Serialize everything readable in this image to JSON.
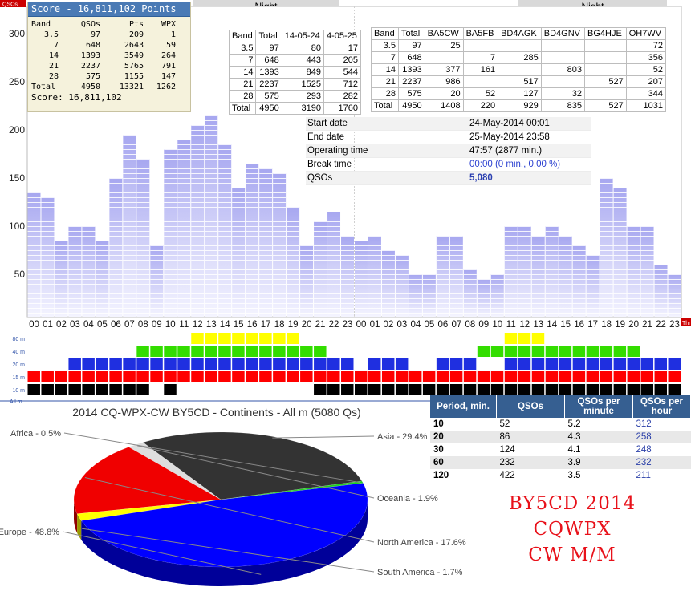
{
  "chart_data": [
    {
      "type": "bar",
      "title": "",
      "ylabel": "QSOs",
      "ylim": [
        0,
        310
      ],
      "y_ticks": [
        50,
        100,
        150,
        200,
        250,
        300
      ],
      "categories": [
        "00",
        "01",
        "02",
        "03",
        "04",
        "05",
        "06",
        "07",
        "08",
        "09",
        "10",
        "11",
        "12",
        "13",
        "14",
        "15",
        "16",
        "17",
        "18",
        "19",
        "20",
        "21",
        "22",
        "23",
        "00",
        "01",
        "02",
        "03",
        "04",
        "05",
        "06",
        "07",
        "08",
        "09",
        "10",
        "11",
        "12",
        "13",
        "14",
        "15",
        "16",
        "17",
        "18",
        "19",
        "20",
        "21",
        "22",
        "23"
      ],
      "values": [
        135,
        130,
        85,
        100,
        100,
        85,
        150,
        195,
        170,
        80,
        180,
        190,
        205,
        215,
        185,
        140,
        165,
        160,
        155,
        120,
        80,
        105,
        115,
        90,
        85,
        90,
        75,
        70,
        50,
        50,
        90,
        90,
        55,
        45,
        50,
        100,
        100,
        90,
        100,
        90,
        80,
        70,
        150,
        140,
        100,
        100,
        60,
        50
      ],
      "bar_color": "#a7a7f0",
      "night_labels": [
        "Night",
        "Night"
      ],
      "right_tag": "Thr"
    },
    {
      "type": "heatmap",
      "rows": [
        "80 m",
        "40 m",
        "20 m",
        "15 m",
        "10 m"
      ],
      "colors": [
        "#ffff00",
        "#33dd00",
        "#1f2fe0",
        "#ff0000",
        "#000000"
      ],
      "active": [
        [
          0,
          0,
          0,
          0,
          0,
          0,
          0,
          0,
          0,
          0,
          0,
          0,
          1,
          1,
          1,
          1,
          1,
          1,
          1,
          1,
          0,
          0,
          0,
          0,
          0,
          0,
          0,
          0,
          0,
          0,
          0,
          0,
          0,
          0,
          0,
          1,
          1,
          1,
          0,
          0,
          0,
          0,
          0,
          0,
          0,
          0,
          0,
          0
        ],
        [
          0,
          0,
          0,
          0,
          0,
          0,
          0,
          0,
          1,
          1,
          1,
          1,
          1,
          1,
          1,
          1,
          1,
          1,
          1,
          1,
          1,
          1,
          0,
          0,
          0,
          0,
          0,
          0,
          0,
          0,
          0,
          0,
          0,
          1,
          1,
          1,
          1,
          1,
          1,
          1,
          1,
          1,
          1,
          1,
          1,
          0,
          0,
          0
        ],
        [
          0,
          0,
          0,
          1,
          1,
          1,
          1,
          1,
          1,
          1,
          1,
          1,
          1,
          1,
          1,
          1,
          1,
          1,
          1,
          1,
          1,
          1,
          1,
          1,
          0,
          1,
          1,
          1,
          0,
          0,
          1,
          1,
          1,
          0,
          0,
          1,
          1,
          1,
          1,
          1,
          1,
          1,
          1,
          1,
          1,
          1,
          1,
          1
        ],
        [
          1,
          1,
          1,
          1,
          1,
          1,
          1,
          1,
          1,
          1,
          1,
          1,
          1,
          1,
          1,
          1,
          1,
          1,
          1,
          1,
          1,
          1,
          1,
          1,
          1,
          1,
          1,
          1,
          1,
          1,
          1,
          1,
          1,
          1,
          1,
          1,
          1,
          1,
          1,
          1,
          1,
          1,
          1,
          1,
          1,
          1,
          1,
          1
        ],
        [
          1,
          1,
          1,
          1,
          1,
          1,
          1,
          1,
          1,
          0,
          1,
          0,
          0,
          0,
          0,
          0,
          0,
          0,
          0,
          0,
          0,
          1,
          1,
          1,
          1,
          1,
          1,
          1,
          1,
          1,
          1,
          1,
          1,
          1,
          1,
          1,
          1,
          1,
          1,
          1,
          1,
          1,
          1,
          1,
          1,
          1,
          1,
          1
        ]
      ],
      "all_label": "All m"
    },
    {
      "type": "pie",
      "title": "2014 CQ-WPX-CW BY5CD - Continents - All m (5080 Qs)",
      "slices": [
        {
          "name": "Asia",
          "label": "Asia - 29.4%",
          "value": 29.4,
          "color": "#333333"
        },
        {
          "name": "Oceania",
          "label": "Oceania - 1.9%",
          "value": 1.9,
          "color": "#dedede"
        },
        {
          "name": "North America",
          "label": "North America - 17.6%",
          "value": 17.6,
          "color": "#f00000"
        },
        {
          "name": "South America",
          "label": "South America - 1.7%",
          "value": 1.7,
          "color": "#ffff00"
        },
        {
          "name": "Europe",
          "label": "Europe - 48.8%",
          "value": 48.8,
          "color": "#0000ff"
        },
        {
          "name": "Africa",
          "label": "Africa - 0.5%",
          "value": 0.5,
          "color": "#22cc22"
        }
      ]
    },
    {
      "type": "table",
      "columns": [
        "Band",
        "Total",
        "14-05-24",
        "4-05-25"
      ],
      "rows": [
        [
          "3.5",
          "97",
          "80",
          "17"
        ],
        [
          "7",
          "648",
          "443",
          "205"
        ],
        [
          "14",
          "1393",
          "849",
          "544"
        ],
        [
          "21",
          "2237",
          "1525",
          "712"
        ],
        [
          "28",
          "575",
          "293",
          "282"
        ],
        [
          "Total",
          "4950",
          "3190",
          "1760"
        ]
      ]
    },
    {
      "type": "table",
      "columns": [
        "Band",
        "Total",
        "BA5CW",
        "BA5FB",
        "BD4AGK",
        "BD4GNV",
        "BG4HJE",
        "OH7WV"
      ],
      "rows": [
        [
          "3.5",
          "97",
          "25",
          "",
          "",
          "",
          "",
          "72"
        ],
        [
          "7",
          "648",
          "",
          "7",
          "285",
          "",
          "",
          "356"
        ],
        [
          "14",
          "1393",
          "377",
          "161",
          "",
          "803",
          "",
          "52"
        ],
        [
          "21",
          "2237",
          "986",
          "",
          "517",
          "",
          "527",
          "207"
        ],
        [
          "28",
          "575",
          "20",
          "52",
          "127",
          "32",
          "",
          "344"
        ],
        [
          "Total",
          "4950",
          "1408",
          "220",
          "929",
          "835",
          "527",
          "1031"
        ]
      ]
    },
    {
      "type": "table",
      "columns": [
        "Period, min.",
        "QSOs",
        "QSOs per minute",
        "QSOs per hour"
      ],
      "rows": [
        [
          "10",
          "52",
          "5.2",
          "312"
        ],
        [
          "20",
          "86",
          "4.3",
          "258"
        ],
        [
          "30",
          "124",
          "4.1",
          "248"
        ],
        [
          "60",
          "232",
          "3.9",
          "232"
        ],
        [
          "120",
          "422",
          "3.5",
          "211"
        ]
      ]
    }
  ],
  "score": {
    "title": "Score - 16,811,102 Points",
    "columns": [
      "Band",
      "QSOs",
      "Pts",
      "WPX"
    ],
    "rows": [
      [
        "3.5",
        "97",
        "209",
        "1"
      ],
      [
        "7",
        "648",
        "2643",
        "59"
      ],
      [
        "14",
        "1393",
        "3549",
        "264"
      ],
      [
        "21",
        "2237",
        "5765",
        "791"
      ],
      [
        "28",
        "575",
        "1155",
        "147"
      ],
      [
        "Total",
        "4950",
        "13321",
        "1262"
      ]
    ],
    "footer": "Score: 16,811,102"
  },
  "info": [
    {
      "key": "Start date",
      "value": "24-May-2014 00:01"
    },
    {
      "key": "End date",
      "value": "25-May-2014 23:58"
    },
    {
      "key": "Operating time",
      "value": "47:57 (2877 min.)"
    },
    {
      "key": "Break time",
      "value": "00:00 (0 min., 0.00 %)"
    },
    {
      "key": "QSOs",
      "value": "5,080"
    }
  ],
  "stamp": {
    "line1": "BY5CD 2014 CQWPX",
    "line2": "CW M/M"
  }
}
